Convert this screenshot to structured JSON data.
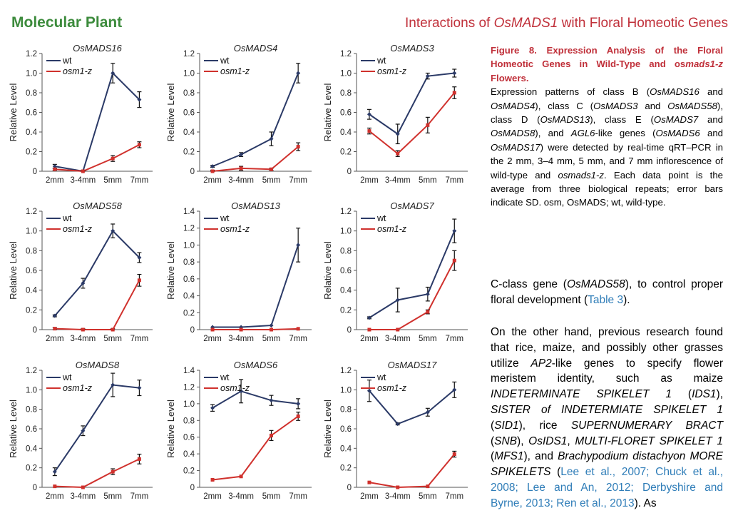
{
  "header": {
    "journal": "Molecular Plant",
    "running_title_pre": "Interactions of ",
    "running_title_gene": "OsMADS1",
    "running_title_post": " with Floral Homeotic Genes"
  },
  "caption": {
    "title_pre": "Figure 8. Expression Analysis of the Floral Homeotic Genes in Wild-Type and os",
    "title_gene": "mads1-z",
    "title_post": " Flowers.",
    "s1": "Expression patterns of class B (",
    "g1": "OsMADS16",
    "s2": " and ",
    "g2": "OsMADS4",
    "s3": "), class C (",
    "g3": "OsMADS3",
    "s4": " and ",
    "g4": "OsMADS58",
    "s5": "), class D (",
    "g5": "OsMADS13",
    "s6": "), class E (",
    "g6": "OsMADS7",
    "s7": " and ",
    "g7": "OsMADS8",
    "s8": "), and ",
    "g8": "AGL6",
    "s9": "-like genes (",
    "g9": "OsMADS6",
    "s10": " and ",
    "g10": "OsMADS17",
    "s11": ") were detected by real-time qRT–PCR in the 2 mm, 3–4 mm, 5 mm, and 7 mm inflorescence of wild-type and ",
    "g11": "osmads1-z",
    "s12": ". Each data point is the average from three biological repeats; error bars indicate SD. osm, OsMADS; wt, wild-type."
  },
  "body": {
    "p1_a": "C-class gene (",
    "p1_gene": "OsMADS58",
    "p1_b": "), to control proper floral development (",
    "p1_ref": "Table 3",
    "p1_c": ").",
    "p2_a": "On the other hand, previous research found that rice, maize, and possibly other grasses utilize ",
    "p2_g1": "AP2",
    "p2_b": "-like genes to specify flower meristem identity, such as maize ",
    "p2_g2": "INDETERMINATE SPIKELET 1",
    "p2_c": " (",
    "p2_g3": "IDS1",
    "p2_d": "), ",
    "p2_g4": "SISTER of INDETERMIATE SPIKELET 1",
    "p2_e": " (",
    "p2_g5": "SID1",
    "p2_f": "), rice ",
    "p2_g6": "SUPERNUMERARY BRACT",
    "p2_g": " (",
    "p2_g7": "SNB",
    "p2_h": "), ",
    "p2_g8": "OsIDS1",
    "p2_i": ", ",
    "p2_g9": "MULTI-FLORET SPIKELET 1",
    "p2_j": " (",
    "p2_g10": "MFS1",
    "p2_k": "), and ",
    "p2_g11": "Brachypodium distachyon MORE SPIKELETS",
    "p2_l": " (",
    "p2_refs": "Lee et al., 2007; Chuck et al., 2008; Lee and An, 2012; Derbyshire and Byrne, 2013; Ren et al., 2013",
    "p2_m": "). As"
  },
  "colors": {
    "wt": "#2b3a67",
    "mutant": "#d0312d",
    "heading_red": "#c0303a",
    "journal_green": "#3c8b3c",
    "link_blue": "#2f7db8"
  },
  "chart_data": [
    {
      "type": "line",
      "title": "OsMADS16",
      "ylabel": "Relative Level",
      "categories": [
        "2mm",
        "3-4mm",
        "5mm",
        "7mm"
      ],
      "ylim": [
        0,
        1.2
      ],
      "yticks": [
        "0",
        "0.2",
        "0.4",
        "0.6",
        "0.8",
        "1.0",
        "1.2"
      ],
      "series": [
        {
          "name": "wt",
          "values": [
            0.05,
            0.0,
            1.0,
            0.73
          ],
          "errors": [
            0.02,
            0.01,
            0.1,
            0.08
          ]
        },
        {
          "name": "osm1-z",
          "values": [
            0.02,
            0.0,
            0.13,
            0.27
          ],
          "errors": [
            0.01,
            0.01,
            0.03,
            0.03
          ]
        }
      ]
    },
    {
      "type": "line",
      "title": "OsMADS4",
      "ylabel": "Relative Level",
      "categories": [
        "2mm",
        "3-4mm",
        "5mm",
        "7mm"
      ],
      "ylim": [
        0,
        1.2
      ],
      "yticks": [
        "0",
        "0.2",
        "0.4",
        "0.6",
        "0.8",
        "1.0",
        "1.2"
      ],
      "series": [
        {
          "name": "wt",
          "values": [
            0.05,
            0.17,
            0.33,
            1.0
          ],
          "errors": [
            0.01,
            0.02,
            0.07,
            0.1
          ]
        },
        {
          "name": "osm1-z",
          "values": [
            0.0,
            0.03,
            0.02,
            0.25
          ],
          "errors": [
            0.01,
            0.02,
            0.01,
            0.04
          ]
        }
      ]
    },
    {
      "type": "line",
      "title": "OsMADS3",
      "ylabel": "Relative Level",
      "categories": [
        "2mm",
        "3-4mm",
        "5mm",
        "7mm"
      ],
      "ylim": [
        0,
        1.2
      ],
      "yticks": [
        "0",
        "0.2",
        "0.4",
        "0.6",
        "0.8",
        "1.0",
        "1.2"
      ],
      "series": [
        {
          "name": "wt",
          "values": [
            0.58,
            0.38,
            0.97,
            1.0
          ],
          "errors": [
            0.05,
            0.1,
            0.03,
            0.04
          ]
        },
        {
          "name": "osm1-z",
          "values": [
            0.41,
            0.18,
            0.47,
            0.8
          ],
          "errors": [
            0.03,
            0.03,
            0.08,
            0.06
          ]
        }
      ]
    },
    {
      "type": "line",
      "title": "OsMADS58",
      "ylabel": "Relative Level",
      "categories": [
        "2mm",
        "3-4mm",
        "5mm",
        "7mm"
      ],
      "ylim": [
        0,
        1.2
      ],
      "yticks": [
        "0",
        "0.2",
        "0.4",
        "0.6",
        "0.8",
        "1.0",
        "1.2"
      ],
      "series": [
        {
          "name": "wt",
          "values": [
            0.14,
            0.47,
            1.0,
            0.73
          ],
          "errors": [
            0.01,
            0.05,
            0.07,
            0.05
          ]
        },
        {
          "name": "osm1-z",
          "values": [
            0.01,
            0.0,
            0.0,
            0.5
          ],
          "errors": [
            0.01,
            0.01,
            0.01,
            0.06
          ]
        }
      ]
    },
    {
      "type": "line",
      "title": "OsMADS13",
      "ylabel": "Relative Level",
      "categories": [
        "2mm",
        "3-4mm",
        "5mm",
        "7mm"
      ],
      "ylim": [
        0,
        1.4
      ],
      "yticks": [
        "0",
        "0.2",
        "0.4",
        "0.6",
        "0.8",
        "1.0",
        "1.2",
        "1.4"
      ],
      "series": [
        {
          "name": "wt",
          "values": [
            0.03,
            0.03,
            0.05,
            1.0
          ],
          "errors": [
            0.0,
            0.0,
            0.0,
            0.2
          ]
        },
        {
          "name": "osm1-z",
          "values": [
            0.0,
            0.0,
            0.0,
            0.01
          ],
          "errors": [
            0.0,
            0.0,
            0.0,
            0.0
          ]
        }
      ]
    },
    {
      "type": "line",
      "title": "OsMADS7",
      "ylabel": "Relative Level",
      "categories": [
        "2mm",
        "3-4mm",
        "5mm",
        "7mm"
      ],
      "ylim": [
        0,
        1.2
      ],
      "yticks": [
        "0",
        "0.2",
        "0.4",
        "0.6",
        "0.8",
        "1.0",
        "1.2"
      ],
      "series": [
        {
          "name": "wt",
          "values": [
            0.12,
            0.3,
            0.36,
            1.0
          ],
          "errors": [
            0.01,
            0.12,
            0.07,
            0.12
          ]
        },
        {
          "name": "osm1-z",
          "values": [
            0.0,
            0.0,
            0.18,
            0.7
          ],
          "errors": [
            0.0,
            0.0,
            0.02,
            0.1
          ]
        }
      ]
    },
    {
      "type": "line",
      "title": "OsMADS8",
      "ylabel": "Relative Level",
      "categories": [
        "2mm",
        "3-4mm",
        "5mm",
        "7mm"
      ],
      "ylim": [
        0,
        1.2
      ],
      "yticks": [
        "0",
        "0.2",
        "0.4",
        "0.6",
        "0.8",
        "1.0",
        "1.2"
      ],
      "series": [
        {
          "name": "wt",
          "values": [
            0.16,
            0.58,
            1.05,
            1.02
          ],
          "errors": [
            0.04,
            0.05,
            0.12,
            0.08
          ]
        },
        {
          "name": "osm1-z",
          "values": [
            0.01,
            0.0,
            0.16,
            0.29
          ],
          "errors": [
            0.0,
            0.0,
            0.03,
            0.05
          ]
        }
      ]
    },
    {
      "type": "line",
      "title": "OsMADS6",
      "ylabel": "Relative Level",
      "categories": [
        "2mm",
        "3-4mm",
        "5mm",
        "7mm"
      ],
      "ylim": [
        0,
        1.4
      ],
      "yticks": [
        "0",
        "0.2",
        "0.4",
        "0.6",
        "0.8",
        "1.0",
        "1.2",
        "1.4"
      ],
      "series": [
        {
          "name": "wt",
          "values": [
            0.95,
            1.15,
            1.04,
            1.0
          ],
          "errors": [
            0.04,
            0.14,
            0.06,
            0.06
          ]
        },
        {
          "name": "osm1-z",
          "values": [
            0.09,
            0.13,
            0.62,
            0.85
          ],
          "errors": [
            0.0,
            0.0,
            0.06,
            0.05
          ]
        }
      ]
    },
    {
      "type": "line",
      "title": "OsMADS17",
      "ylabel": "Relative Level",
      "categories": [
        "2mm",
        "3-4mm",
        "5mm",
        "7mm"
      ],
      "ylim": [
        0,
        1.2
      ],
      "yticks": [
        "0",
        "0.2",
        "0.4",
        "0.6",
        "0.8",
        "1.0",
        "1.2"
      ],
      "series": [
        {
          "name": "wt",
          "values": [
            0.99,
            0.65,
            0.77,
            1.0
          ],
          "errors": [
            0.11,
            0.01,
            0.04,
            0.08
          ]
        },
        {
          "name": "osm1-z",
          "values": [
            0.05,
            0.0,
            0.01,
            0.34
          ],
          "errors": [
            0.0,
            0.0,
            0.0,
            0.03
          ]
        }
      ]
    }
  ]
}
